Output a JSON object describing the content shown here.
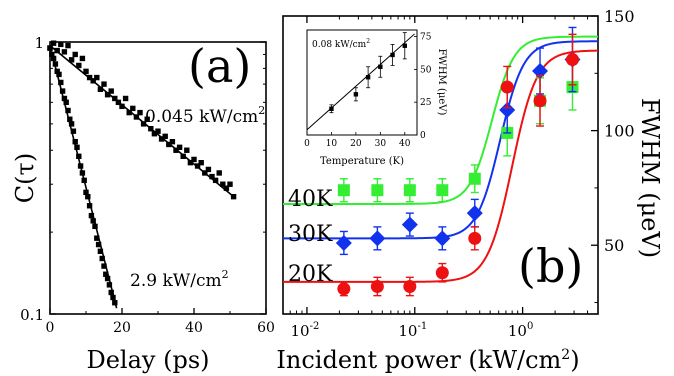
{
  "chart_data": [
    {
      "type": "scatter",
      "panel_label": "(a)",
      "xlabel": "Delay (ps)",
      "ylabel": "C(τ)",
      "xlim": [
        0,
        60
      ],
      "ylim": [
        0.1,
        1
      ],
      "yscale": "log",
      "x_ticks": [
        "0",
        "20",
        "40",
        "60"
      ],
      "y_ticks": [
        "1",
        "0.1"
      ],
      "series": [
        {
          "name": "0.045 kW/cm",
          "superscript": "2",
          "fit_line": [
            [
              0,
              0.97
            ],
            [
              51,
              0.27
            ]
          ],
          "x": [
            0,
            1,
            2,
            3,
            4,
            5,
            6,
            7,
            8,
            9,
            10,
            11,
            12,
            13,
            14,
            15,
            16,
            17,
            18,
            19,
            20,
            21,
            22,
            23,
            24,
            25,
            26,
            27,
            28,
            29,
            30,
            31,
            32,
            33,
            34,
            35,
            36,
            37,
            38,
            39,
            40,
            41,
            42,
            43,
            44,
            45,
            46,
            47,
            48,
            49,
            50,
            51
          ],
          "y": [
            0.95,
            0.99,
            0.93,
            0.98,
            0.92,
            0.97,
            0.86,
            0.9,
            0.82,
            0.87,
            0.78,
            0.74,
            0.72,
            0.74,
            0.67,
            0.7,
            0.64,
            0.66,
            0.62,
            0.6,
            0.58,
            0.62,
            0.55,
            0.57,
            0.53,
            0.55,
            0.5,
            0.52,
            0.48,
            0.46,
            0.47,
            0.44,
            0.45,
            0.42,
            0.43,
            0.4,
            0.41,
            0.38,
            0.4,
            0.36,
            0.37,
            0.35,
            0.36,
            0.33,
            0.34,
            0.32,
            0.31,
            0.33,
            0.3,
            0.29,
            0.3,
            0.27
          ]
        },
        {
          "name": "2.9 kW/cm",
          "superscript": "2",
          "fit_line": [
            [
              0,
              0.97
            ],
            [
              18.5,
              0.105
            ]
          ],
          "x": [
            0,
            0.5,
            1,
            1.5,
            2,
            2.5,
            3,
            3.5,
            4,
            4.5,
            5,
            5.5,
            6,
            6.5,
            7,
            7.5,
            8,
            8.5,
            9,
            9.5,
            10,
            10.5,
            11,
            11.5,
            12,
            12.5,
            13,
            13.5,
            14,
            14.5,
            15,
            15.5,
            16,
            16.5,
            17,
            17.5,
            18
          ],
          "y": [
            0.95,
            0.9,
            0.87,
            0.83,
            0.78,
            0.76,
            0.71,
            0.66,
            0.62,
            0.6,
            0.56,
            0.52,
            0.5,
            0.47,
            0.43,
            0.41,
            0.38,
            0.35,
            0.33,
            0.31,
            0.28,
            0.27,
            0.25,
            0.23,
            0.22,
            0.21,
            0.19,
            0.18,
            0.17,
            0.16,
            0.15,
            0.14,
            0.135,
            0.128,
            0.12,
            0.115,
            0.11
          ]
        }
      ]
    },
    {
      "type": "scatter",
      "panel_label": "(b)",
      "xlabel": "Incident power (kW/cm",
      "xlabel_sup": "2",
      "xlabel_tail": ")",
      "ylabel": "FWHM (μeV)",
      "xscale": "log",
      "xlim": [
        0.006,
        5
      ],
      "ylim": [
        20,
        150
      ],
      "x_ticks": [
        {
          "base": "10",
          "exp": "-2",
          "v": 0.01
        },
        {
          "base": "10",
          "exp": "-1",
          "v": 0.1
        },
        {
          "base": "10",
          "exp": "0",
          "v": 1
        }
      ],
      "y_ticks": [
        "50",
        "100",
        "150"
      ],
      "colors": {
        "40K": "#33ee33",
        "30K": "#1133ee",
        "20K": "#ee1111"
      },
      "series": [
        {
          "name": "40K",
          "marker": "square",
          "x": [
            0.022,
            0.045,
            0.09,
            0.18,
            0.36,
            0.72,
            1.45,
            2.9
          ],
          "y": [
            74,
            74,
            74,
            74,
            79,
            99,
            113,
            119
          ],
          "err": [
            5,
            5,
            5,
            5,
            6,
            10,
            10,
            10
          ]
        },
        {
          "name": "30K",
          "marker": "diamond",
          "x": [
            0.022,
            0.045,
            0.09,
            0.18,
            0.36,
            0.72,
            1.45,
            2.9
          ],
          "y": [
            51,
            53,
            59,
            53,
            64,
            109,
            126,
            131
          ],
          "err": [
            5,
            5,
            5,
            5,
            6,
            10,
            10,
            14
          ]
        },
        {
          "name": "20K",
          "marker": "circle",
          "x": [
            0.022,
            0.045,
            0.09,
            0.18,
            0.36,
            0.72,
            1.45,
            2.9
          ],
          "y": [
            31,
            32,
            32,
            38,
            53,
            119,
            113,
            131
          ],
          "err": [
            3,
            4,
            4,
            4,
            5,
            9,
            11,
            11
          ]
        }
      ],
      "inset": {
        "type": "scatter",
        "annotation": "0.08 kW/cm",
        "annotation_sup": "2",
        "xlabel": "Temperature (K)",
        "ylabel": "FWHM (μeV)",
        "xlim": [
          0,
          45
        ],
        "ylim": [
          0,
          80
        ],
        "x_ticks": [
          "0",
          "10",
          "20",
          "30",
          "40"
        ],
        "y_ticks": [
          "0",
          "25",
          "50",
          "75"
        ],
        "x": [
          10,
          20,
          25,
          30,
          35,
          40
        ],
        "y": [
          20,
          31,
          44,
          52,
          61,
          68
        ],
        "err": [
          3,
          5,
          8,
          8,
          8,
          10
        ]
      }
    }
  ]
}
